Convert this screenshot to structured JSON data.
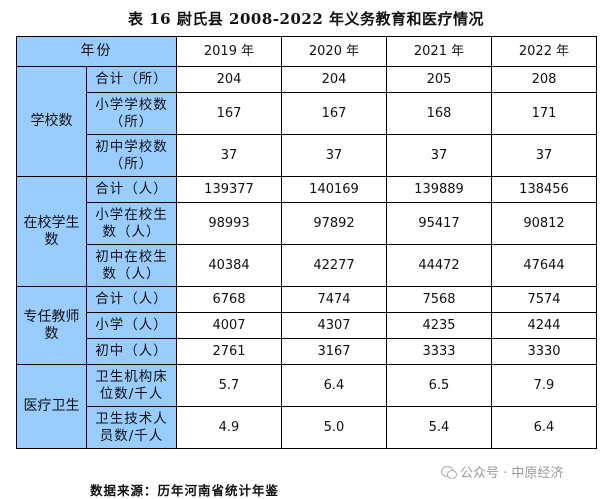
{
  "title": "表 16 尉氏县 2008-2022 年义务教育和医疗情况",
  "header": {
    "label": "年份",
    "years": [
      "2019 年",
      "2020 年",
      "2021 年",
      "2022 年"
    ]
  },
  "groups": [
    {
      "category": "学校数",
      "rows": [
        {
          "label": "合计（所）",
          "values": [
            "204",
            "204",
            "205",
            "208"
          ]
        },
        {
          "label": "小学学校数（所）",
          "values": [
            "167",
            "167",
            "168",
            "171"
          ]
        },
        {
          "label": "初中学校数（所）",
          "values": [
            "37",
            "37",
            "37",
            "37"
          ]
        }
      ]
    },
    {
      "category": "在校学生数",
      "rows": [
        {
          "label": "合计（人）",
          "values": [
            "139377",
            "140169",
            "139889",
            "138456"
          ]
        },
        {
          "label": "小学在校生数（人）",
          "values": [
            "98993",
            "97892",
            "95417",
            "90812"
          ]
        },
        {
          "label": "初中在校生数（人）",
          "values": [
            "40384",
            "42277",
            "44472",
            "47644"
          ]
        }
      ]
    },
    {
      "category": "专任教师数",
      "rows": [
        {
          "label": "合计（人）",
          "values": [
            "6768",
            "7474",
            "7568",
            "7574"
          ]
        },
        {
          "label": "小学（人）",
          "values": [
            "4007",
            "4307",
            "4235",
            "4244"
          ]
        },
        {
          "label": "初中（人）",
          "values": [
            "2761",
            "3167",
            "3333",
            "3330"
          ]
        }
      ]
    },
    {
      "category": "医疗卫生",
      "rows": [
        {
          "label": "卫生机构床位数/千人",
          "values": [
            "5.7",
            "6.4",
            "6.5",
            "7.9"
          ]
        },
        {
          "label": "卫生技术人员数/千人",
          "values": [
            "4.9",
            "5.0",
            "5.4",
            "6.4"
          ]
        }
      ]
    }
  ],
  "source": "数据来源：历年河南省统计年鉴",
  "watermark": {
    "icon": "wechat-icon",
    "text": "公众号 · 中原经济"
  }
}
